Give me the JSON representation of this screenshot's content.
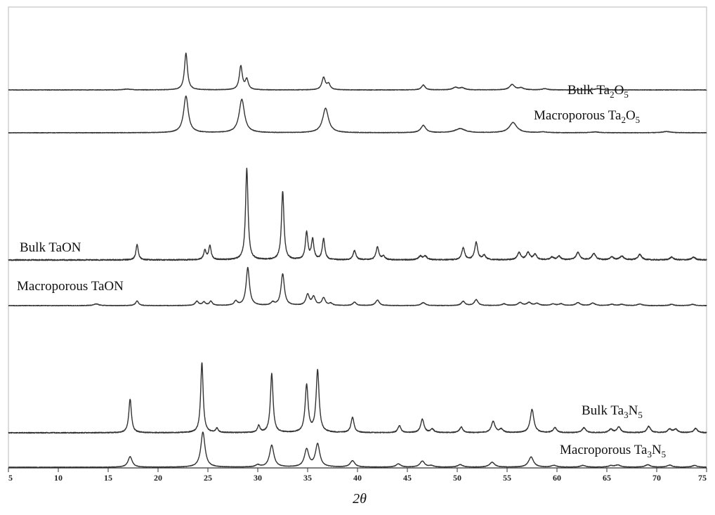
{
  "chart_data": {
    "type": "line",
    "title": "",
    "xlabel": "2θ",
    "ylabel": "",
    "xlim": [
      5,
      75
    ],
    "x_ticks": [
      "5",
      "10",
      "15",
      "20",
      "25",
      "30",
      "35",
      "40",
      "45",
      "50",
      "55",
      "60",
      "65",
      "70",
      "75"
    ],
    "grid": false,
    "legend": "none",
    "series": [
      {
        "name": "Bulk Ta2O5",
        "label_parts": [
          [
            "Bulk Ta",
            ""
          ],
          [
            "2",
            "sub"
          ],
          [
            "O",
            ""
          ],
          [
            "5",
            "sub"
          ]
        ],
        "peaks": [
          [
            16.9,
            0.02,
            0.4
          ],
          [
            22.8,
            0.9,
            0.18
          ],
          [
            28.3,
            0.58,
            0.18
          ],
          [
            28.9,
            0.25,
            0.18
          ],
          [
            36.6,
            0.3,
            0.2
          ],
          [
            37.1,
            0.14,
            0.2
          ],
          [
            46.6,
            0.12,
            0.22
          ],
          [
            49.8,
            0.06,
            0.3
          ],
          [
            50.5,
            0.05,
            0.3
          ],
          [
            55.5,
            0.13,
            0.3
          ],
          [
            56.4,
            0.05,
            0.3
          ],
          [
            58.8,
            0.03,
            0.3
          ],
          [
            64.1,
            0.03,
            0.35
          ]
        ]
      },
      {
        "name": "Macroporous Ta2O5",
        "label_parts": [
          [
            "Macroporous Ta",
            ""
          ],
          [
            "2",
            "sub"
          ],
          [
            "O",
            ""
          ],
          [
            "5",
            "sub"
          ]
        ],
        "peaks": [
          [
            22.8,
            0.9,
            0.28
          ],
          [
            28.4,
            0.82,
            0.32
          ],
          [
            36.8,
            0.6,
            0.35
          ],
          [
            46.6,
            0.18,
            0.3
          ],
          [
            50.3,
            0.1,
            0.6
          ],
          [
            55.6,
            0.25,
            0.45
          ],
          [
            58.6,
            0.02,
            0.4
          ],
          [
            63.8,
            0.02,
            0.5
          ],
          [
            71.0,
            0.03,
            0.5
          ]
        ]
      },
      {
        "name": "Bulk TaON",
        "label_parts": [
          [
            "Bulk TaON",
            ""
          ]
        ],
        "peaks": [
          [
            17.9,
            0.17,
            0.14
          ],
          [
            24.7,
            0.1,
            0.15
          ],
          [
            25.2,
            0.15,
            0.15
          ],
          [
            28.9,
            1.0,
            0.15
          ],
          [
            32.5,
            0.75,
            0.15
          ],
          [
            34.9,
            0.3,
            0.15
          ],
          [
            35.5,
            0.22,
            0.15
          ],
          [
            36.6,
            0.23,
            0.15
          ],
          [
            39.7,
            0.1,
            0.17
          ],
          [
            42.0,
            0.14,
            0.17
          ],
          [
            42.6,
            0.04,
            0.17
          ],
          [
            46.3,
            0.04,
            0.2
          ],
          [
            46.8,
            0.04,
            0.2
          ],
          [
            50.6,
            0.13,
            0.18
          ],
          [
            51.9,
            0.19,
            0.18
          ],
          [
            52.7,
            0.05,
            0.18
          ],
          [
            56.2,
            0.08,
            0.2
          ],
          [
            57.1,
            0.08,
            0.2
          ],
          [
            57.8,
            0.06,
            0.2
          ],
          [
            59.5,
            0.03,
            0.2
          ],
          [
            60.2,
            0.04,
            0.2
          ],
          [
            62.1,
            0.08,
            0.22
          ],
          [
            63.7,
            0.07,
            0.22
          ],
          [
            65.5,
            0.03,
            0.22
          ],
          [
            66.5,
            0.04,
            0.22
          ],
          [
            68.3,
            0.06,
            0.22
          ],
          [
            71.5,
            0.03,
            0.22
          ],
          [
            73.7,
            0.03,
            0.22
          ]
        ]
      },
      {
        "name": "Macroporous TaON",
        "label_parts": [
          [
            "Macroporous TaON",
            ""
          ]
        ],
        "peaks": [
          [
            13.8,
            0.04,
            0.3
          ],
          [
            17.9,
            0.11,
            0.18
          ],
          [
            23.9,
            0.1,
            0.2
          ],
          [
            24.6,
            0.08,
            0.18
          ],
          [
            25.3,
            0.1,
            0.18
          ],
          [
            27.8,
            0.1,
            0.2
          ],
          [
            29.0,
            0.9,
            0.2
          ],
          [
            31.5,
            0.07,
            0.2
          ],
          [
            32.5,
            0.75,
            0.2
          ],
          [
            35.0,
            0.26,
            0.2
          ],
          [
            35.6,
            0.2,
            0.2
          ],
          [
            36.6,
            0.18,
            0.2
          ],
          [
            37.3,
            0.05,
            0.2
          ],
          [
            39.7,
            0.08,
            0.2
          ],
          [
            42.0,
            0.13,
            0.22
          ],
          [
            46.6,
            0.07,
            0.25
          ],
          [
            50.6,
            0.1,
            0.22
          ],
          [
            51.9,
            0.14,
            0.22
          ],
          [
            54.7,
            0.04,
            0.25
          ],
          [
            56.3,
            0.07,
            0.25
          ],
          [
            57.2,
            0.07,
            0.25
          ],
          [
            58.0,
            0.05,
            0.25
          ],
          [
            59.6,
            0.04,
            0.25
          ],
          [
            60.4,
            0.04,
            0.25
          ],
          [
            62.1,
            0.07,
            0.25
          ],
          [
            63.6,
            0.06,
            0.25
          ],
          [
            65.5,
            0.03,
            0.25
          ],
          [
            66.5,
            0.03,
            0.25
          ],
          [
            68.3,
            0.04,
            0.25
          ],
          [
            71.5,
            0.03,
            0.25
          ],
          [
            73.6,
            0.03,
            0.25
          ]
        ]
      },
      {
        "name": "Bulk Ta3N5",
        "label_parts": [
          [
            "Bulk Ta",
            ""
          ],
          [
            "3",
            "sub"
          ],
          [
            "N",
            ""
          ],
          [
            "5",
            "sub"
          ]
        ],
        "peaks": [
          [
            17.2,
            0.48,
            0.16
          ],
          [
            24.4,
            1.0,
            0.15
          ],
          [
            25.9,
            0.06,
            0.15
          ],
          [
            30.1,
            0.1,
            0.15
          ],
          [
            31.4,
            0.84,
            0.16
          ],
          [
            34.9,
            0.67,
            0.18
          ],
          [
            36.0,
            0.88,
            0.18
          ],
          [
            39.5,
            0.22,
            0.18
          ],
          [
            44.2,
            0.1,
            0.18
          ],
          [
            46.5,
            0.19,
            0.2
          ],
          [
            47.5,
            0.05,
            0.2
          ],
          [
            50.4,
            0.08,
            0.2
          ],
          [
            53.6,
            0.16,
            0.22
          ],
          [
            54.4,
            0.05,
            0.22
          ],
          [
            57.5,
            0.33,
            0.22
          ],
          [
            59.8,
            0.07,
            0.22
          ],
          [
            62.7,
            0.07,
            0.22
          ],
          [
            65.4,
            0.05,
            0.22
          ],
          [
            66.2,
            0.08,
            0.22
          ],
          [
            69.2,
            0.09,
            0.22
          ],
          [
            71.3,
            0.05,
            0.22
          ],
          [
            71.9,
            0.05,
            0.22
          ],
          [
            73.9,
            0.06,
            0.22
          ]
        ]
      },
      {
        "name": "Macroporous Ta3N5",
        "label_parts": [
          [
            "Macroporous Ta",
            ""
          ],
          [
            "3",
            "sub"
          ],
          [
            "N",
            ""
          ],
          [
            "5",
            "sub"
          ]
        ],
        "peaks": [
          [
            17.2,
            0.3,
            0.25
          ],
          [
            24.5,
            1.0,
            0.25
          ],
          [
            30.0,
            0.06,
            0.25
          ],
          [
            31.4,
            0.62,
            0.26
          ],
          [
            34.9,
            0.5,
            0.26
          ],
          [
            36.0,
            0.65,
            0.26
          ],
          [
            39.5,
            0.18,
            0.28
          ],
          [
            44.1,
            0.09,
            0.28
          ],
          [
            46.5,
            0.17,
            0.28
          ],
          [
            47.4,
            0.04,
            0.28
          ],
          [
            50.3,
            0.07,
            0.3
          ],
          [
            53.5,
            0.14,
            0.3
          ],
          [
            57.4,
            0.29,
            0.3
          ],
          [
            59.7,
            0.05,
            0.3
          ],
          [
            62.6,
            0.05,
            0.3
          ],
          [
            65.4,
            0.04,
            0.3
          ],
          [
            66.1,
            0.06,
            0.3
          ],
          [
            69.1,
            0.07,
            0.3
          ],
          [
            71.3,
            0.06,
            0.3
          ],
          [
            73.8,
            0.05,
            0.3
          ]
        ]
      }
    ]
  }
}
